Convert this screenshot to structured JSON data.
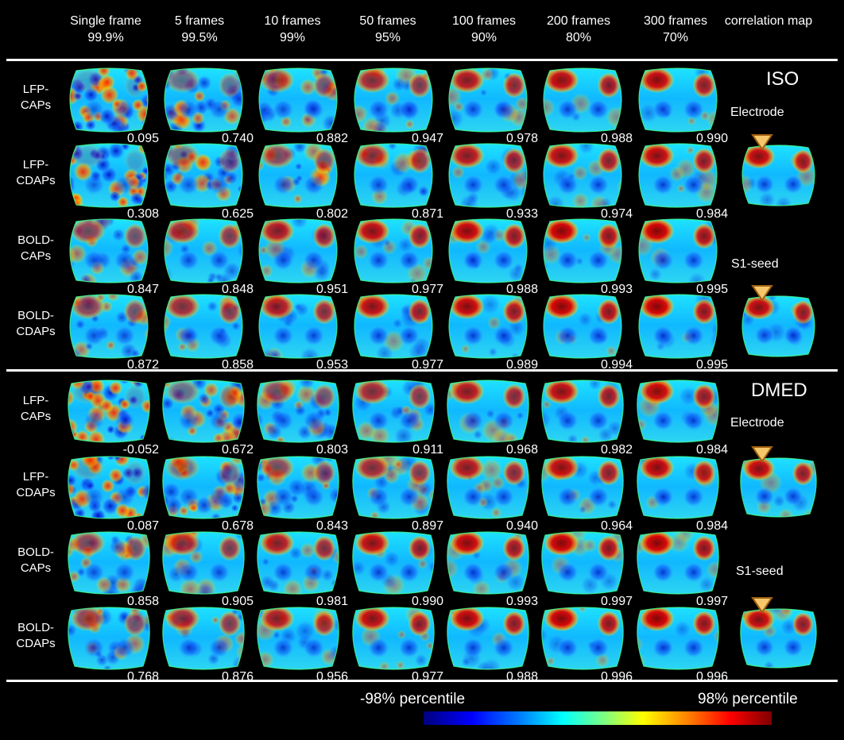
{
  "header": {
    "columns": [
      {
        "label": "Single frame",
        "pct": "99.9%"
      },
      {
        "label": "5 frames",
        "pct": "99.5%"
      },
      {
        "label": "10 frames",
        "pct": "99%"
      },
      {
        "label": "50 frames",
        "pct": "95%"
      },
      {
        "label": "100 frames",
        "pct": "90%"
      },
      {
        "label": "200 frames",
        "pct": "80%"
      },
      {
        "label": "300 frames",
        "pct": "70%"
      },
      {
        "label": "correlation map",
        "pct": ""
      }
    ]
  },
  "iso": {
    "condition": "ISO",
    "electrode_label": "Electrode",
    "seed_label": "S1-seed",
    "rows": [
      {
        "l1": "LFP-",
        "l2": "CAPs",
        "values": [
          "0.095",
          "0.740",
          "0.882",
          "0.947",
          "0.978",
          "0.988",
          "0.990"
        ]
      },
      {
        "l1": "LFP-",
        "l2": "CDAPs",
        "values": [
          "0.308",
          "0.625",
          "0.802",
          "0.871",
          "0.933",
          "0.974",
          "0.984"
        ]
      },
      {
        "l1": "BOLD-",
        "l2": "CAPs",
        "values": [
          "0.847",
          "0.848",
          "0.951",
          "0.977",
          "0.988",
          "0.993",
          "0.995"
        ]
      },
      {
        "l1": "BOLD-",
        "l2": "CDAPs",
        "values": [
          "0.872",
          "0.858",
          "0.953",
          "0.977",
          "0.989",
          "0.994",
          "0.995"
        ]
      }
    ]
  },
  "dmed": {
    "condition": "DMED",
    "electrode_label": "Electrode",
    "seed_label": "S1-seed",
    "rows": [
      {
        "l1": "LFP-",
        "l2": "CAPs",
        "values": [
          "-0.052",
          "0.672",
          "0.803",
          "0.911",
          "0.968",
          "0.982",
          "0.984"
        ]
      },
      {
        "l1": "LFP-",
        "l2": "CDAPs",
        "values": [
          "0.087",
          "0.678",
          "0.843",
          "0.897",
          "0.940",
          "0.964",
          "0.984"
        ]
      },
      {
        "l1": "BOLD-",
        "l2": "CAPs",
        "values": [
          "0.858",
          "0.905",
          "0.981",
          "0.990",
          "0.993",
          "0.997",
          "0.997"
        ]
      },
      {
        "l1": "BOLD-",
        "l2": "CDAPs",
        "values": [
          "0.768",
          "0.876",
          "0.956",
          "0.977",
          "0.988",
          "0.996",
          "0.996"
        ]
      }
    ]
  },
  "colorbar": {
    "left_label": "-98% percentile",
    "right_label": "98% percentile",
    "colors": [
      "#00007f",
      "#0000ff",
      "#0080ff",
      "#00ffff",
      "#7fff7f",
      "#ffff00",
      "#ff8000",
      "#ff0000",
      "#7f0000"
    ]
  },
  "marker_color": "#f5c76a"
}
